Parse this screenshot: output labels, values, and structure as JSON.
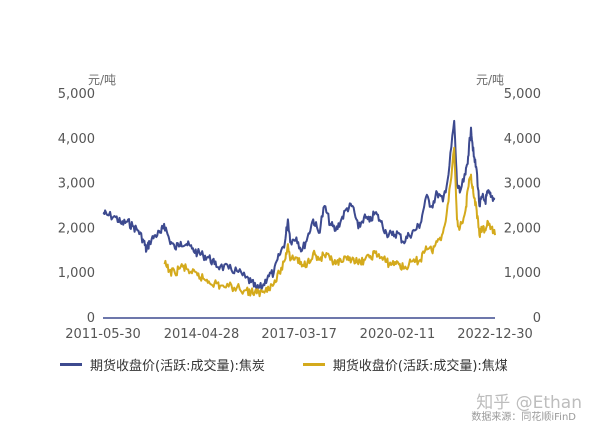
{
  "chart_data": {
    "type": "line",
    "title": "",
    "y_unit_left": "元/吨",
    "y_unit_right": "元/吨",
    "ylim": [
      0,
      5000
    ],
    "yticks": [
      "0",
      "1,000",
      "2,000",
      "3,000",
      "4,000",
      "5,000"
    ],
    "ytick_values": [
      0,
      1000,
      2000,
      3000,
      4000,
      5000
    ],
    "xlim": [
      "2011-05-30",
      "2022-12-30"
    ],
    "xticks": [
      "2011-05-30",
      "2014-04-28",
      "2017-03-17",
      "2020-02-11",
      "2022-12-30"
    ],
    "grid": false,
    "legend_position": "bottom",
    "series": [
      {
        "name": "期货收盘价(活跃:成交量):焦炭",
        "color": "#3d4a8f",
        "points": [
          [
            "2011-05-30",
            2350
          ],
          [
            "2011-07-15",
            2300
          ],
          [
            "2011-10-15",
            2250
          ],
          [
            "2011-12-15",
            2100
          ],
          [
            "2012-02-15",
            2150
          ],
          [
            "2012-04-15",
            2050
          ],
          [
            "2012-06-15",
            1950
          ],
          [
            "2012-08-15",
            1700
          ],
          [
            "2012-09-10",
            1500
          ],
          [
            "2012-10-15",
            1700
          ],
          [
            "2012-12-15",
            1850
          ],
          [
            "2013-02-15",
            1900
          ],
          [
            "2013-03-20",
            2100
          ],
          [
            "2013-05-15",
            1750
          ],
          [
            "2013-07-15",
            1550
          ],
          [
            "2013-09-15",
            1700
          ],
          [
            "2013-11-15",
            1650
          ],
          [
            "2014-01-15",
            1550
          ],
          [
            "2014-03-15",
            1450
          ],
          [
            "2014-05-15",
            1400
          ],
          [
            "2014-07-15",
            1350
          ],
          [
            "2014-09-15",
            1200
          ],
          [
            "2014-11-15",
            1150
          ],
          [
            "2015-02-15",
            1100
          ],
          [
            "2015-05-15",
            1050
          ],
          [
            "2015-08-15",
            900
          ],
          [
            "2015-10-15",
            800
          ],
          [
            "2015-12-15",
            650
          ],
          [
            "2016-02-15",
            700
          ],
          [
            "2016-04-15",
            950
          ],
          [
            "2016-06-15",
            1000
          ],
          [
            "2016-08-15",
            1400
          ],
          [
            "2016-10-15",
            1700
          ],
          [
            "2016-11-15",
            2200
          ],
          [
            "2016-12-15",
            1700
          ],
          [
            "2017-02-15",
            1800
          ],
          [
            "2017-04-15",
            1500
          ],
          [
            "2017-06-15",
            1800
          ],
          [
            "2017-08-15",
            2200
          ],
          [
            "2017-10-15",
            1900
          ],
          [
            "2017-12-15",
            2500
          ],
          [
            "2018-02-15",
            2100
          ],
          [
            "2018-04-15",
            1950
          ],
          [
            "2018-06-15",
            2200
          ],
          [
            "2018-08-15",
            2450
          ],
          [
            "2018-10-15",
            2500
          ],
          [
            "2018-12-15",
            2000
          ],
          [
            "2019-02-15",
            2250
          ],
          [
            "2019-04-15",
            2150
          ],
          [
            "2019-06-15",
            2350
          ],
          [
            "2019-08-15",
            2150
          ],
          [
            "2019-10-15",
            1900
          ],
          [
            "2019-12-15",
            1850
          ],
          [
            "2020-02-15",
            1900
          ],
          [
            "2020-04-15",
            1700
          ],
          [
            "2020-06-15",
            1850
          ],
          [
            "2020-08-15",
            1950
          ],
          [
            "2020-10-15",
            2100
          ],
          [
            "2020-12-15",
            2700
          ],
          [
            "2021-02-15",
            2500
          ],
          [
            "2021-04-15",
            2800
          ],
          [
            "2021-06-15",
            2600
          ],
          [
            "2021-08-15",
            3200
          ],
          [
            "2021-10-15",
            4400
          ],
          [
            "2021-11-15",
            3000
          ],
          [
            "2021-12-15",
            2800
          ],
          [
            "2022-02-15",
            3200
          ],
          [
            "2022-03-15",
            3600
          ],
          [
            "2022-04-15",
            4250
          ],
          [
            "2022-05-15",
            3600
          ],
          [
            "2022-06-15",
            3300
          ],
          [
            "2022-07-15",
            2500
          ],
          [
            "2022-08-15",
            2700
          ],
          [
            "2022-09-15",
            2600
          ],
          [
            "2022-10-15",
            2800
          ],
          [
            "2022-11-15",
            2700
          ],
          [
            "2022-12-30",
            2650
          ]
        ]
      },
      {
        "name": "期货收盘价(活跃:成交量):焦煤",
        "color": "#d4aa1c",
        "points": [
          [
            "2013-03-25",
            1200
          ],
          [
            "2013-05-15",
            1050
          ],
          [
            "2013-07-15",
            1000
          ],
          [
            "2013-09-15",
            1150
          ],
          [
            "2013-11-15",
            1100
          ],
          [
            "2014-01-15",
            1000
          ],
          [
            "2014-03-15",
            950
          ],
          [
            "2014-05-15",
            880
          ],
          [
            "2014-07-15",
            820
          ],
          [
            "2014-09-15",
            780
          ],
          [
            "2014-11-15",
            720
          ],
          [
            "2015-02-15",
            700
          ],
          [
            "2015-05-15",
            680
          ],
          [
            "2015-08-15",
            620
          ],
          [
            "2015-10-15",
            580
          ],
          [
            "2015-12-15",
            550
          ],
          [
            "2016-02-15",
            580
          ],
          [
            "2016-04-15",
            700
          ],
          [
            "2016-06-15",
            750
          ],
          [
            "2016-08-15",
            1000
          ],
          [
            "2016-10-15",
            1300
          ],
          [
            "2016-11-15",
            1650
          ],
          [
            "2016-12-15",
            1300
          ],
          [
            "2017-02-15",
            1350
          ],
          [
            "2017-04-15",
            1150
          ],
          [
            "2017-06-15",
            1250
          ],
          [
            "2017-08-15",
            1450
          ],
          [
            "2017-10-15",
            1300
          ],
          [
            "2017-12-15",
            1400
          ],
          [
            "2018-02-15",
            1300
          ],
          [
            "2018-04-15",
            1200
          ],
          [
            "2018-06-15",
            1250
          ],
          [
            "2018-08-15",
            1300
          ],
          [
            "2018-10-15",
            1350
          ],
          [
            "2018-12-15",
            1200
          ],
          [
            "2019-02-15",
            1300
          ],
          [
            "2019-04-15",
            1350
          ],
          [
            "2019-06-15",
            1450
          ],
          [
            "2019-08-15",
            1350
          ],
          [
            "2019-10-15",
            1250
          ],
          [
            "2019-12-15",
            1200
          ],
          [
            "2020-02-15",
            1250
          ],
          [
            "2020-04-15",
            1100
          ],
          [
            "2020-06-15",
            1200
          ],
          [
            "2020-08-15",
            1250
          ],
          [
            "2020-10-15",
            1300
          ],
          [
            "2020-12-15",
            1600
          ],
          [
            "2021-02-15",
            1500
          ],
          [
            "2021-04-15",
            1700
          ],
          [
            "2021-06-15",
            1900
          ],
          [
            "2021-08-15",
            2600
          ],
          [
            "2021-10-15",
            3800
          ],
          [
            "2021-11-15",
            2200
          ],
          [
            "2021-12-15",
            2000
          ],
          [
            "2022-02-15",
            2400
          ],
          [
            "2022-03-15",
            2900
          ],
          [
            "2022-04-15",
            3200
          ],
          [
            "2022-05-15",
            2700
          ],
          [
            "2022-06-15",
            2400
          ],
          [
            "2022-07-15",
            1850
          ],
          [
            "2022-08-15",
            2000
          ],
          [
            "2022-09-15",
            1950
          ],
          [
            "2022-10-15",
            2150
          ],
          [
            "2022-11-15",
            2000
          ],
          [
            "2022-12-30",
            1850
          ]
        ]
      }
    ]
  },
  "watermark": "知乎 @Ethan",
  "source": "数据来源：同花顺iFinD"
}
